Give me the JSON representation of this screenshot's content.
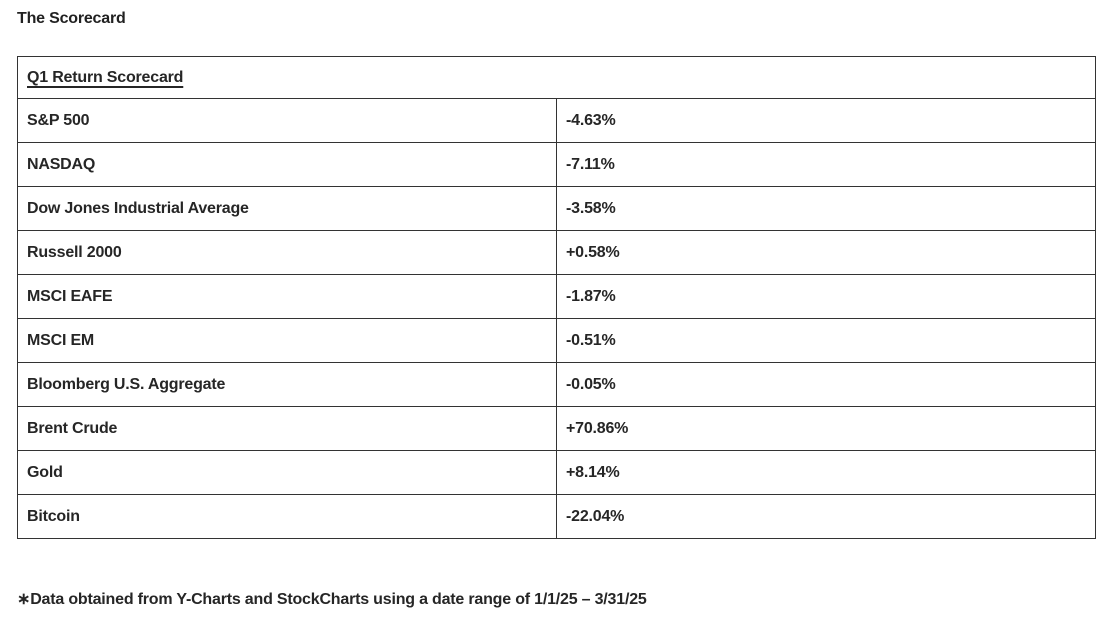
{
  "page": {
    "title": "The Scorecard",
    "footnote": "∗Data obtained from Y-Charts and StockCharts using a date range of 1/1/25 – 3/31/25"
  },
  "scorecard": {
    "header": "Q1 Return Scorecard",
    "rows": [
      {
        "label": "S&P 500",
        "value": "-4.63%"
      },
      {
        "label": "NASDAQ",
        "value": "-7.11%"
      },
      {
        "label": "Dow Jones Industrial Average",
        "value": "-3.58%"
      },
      {
        "label": "Russell 2000",
        "value": "+0.58%"
      },
      {
        "label": "MSCI EAFE",
        "value": "-1.87%"
      },
      {
        "label": "MSCI EM",
        "value": "-0.51%"
      },
      {
        "label": "Bloomberg U.S. Aggregate",
        "value": "-0.05%"
      },
      {
        "label": "Brent Crude",
        "value": "+70.86%"
      },
      {
        "label": "Gold",
        "value": "+8.14%"
      },
      {
        "label": "Bitcoin",
        "value": "-22.04%"
      }
    ]
  },
  "colors": {
    "text": "#262626",
    "border": "#333333",
    "background": "#ffffff"
  }
}
